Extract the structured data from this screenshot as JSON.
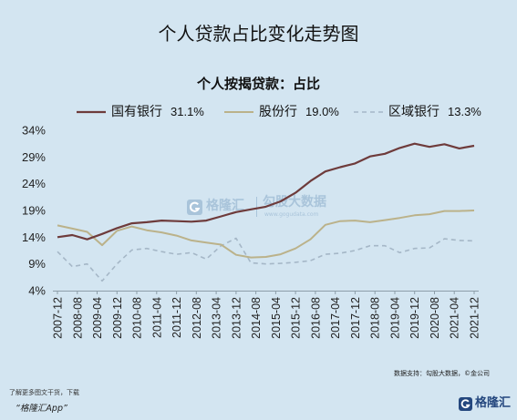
{
  "colors": {
    "background": "#d3e5f1",
    "axis": "#8d9ea9",
    "watermark": "#a9c4da",
    "brand": "#24477e"
  },
  "icons": {
    "watermark_logo": "gelonghui-logo-icon",
    "footer_logo": "gelonghui-logo-icon"
  },
  "watermark": {
    "brand": "格隆汇",
    "data_brand": "勾股大数据",
    "url": "www.gogudata.com"
  },
  "footer": {
    "promo_line": "了解更多图文干货，下载",
    "promo_app": "“格隆汇App”",
    "source": "数据支持：勾股大数据，©金公司",
    "brand": "格隆汇"
  },
  "chart_data": {
    "type": "line",
    "title": "个人贷款占比变化走势图",
    "subtitle": "个人按揭贷款：占比",
    "ylim": [
      4,
      34
    ],
    "y_ticks": [
      34,
      29,
      24,
      19,
      14,
      9,
      4
    ],
    "y_tick_labels": [
      "34%",
      "29%",
      "24%",
      "19%",
      "14%",
      "9%",
      "4%"
    ],
    "x_ticks": [
      "2007-12",
      "2008-08",
      "2009-04",
      "2009-12",
      "2010-08",
      "2011-04",
      "2011-12",
      "2012-08",
      "2013-04",
      "2013-12",
      "2014-08",
      "2015-04",
      "2015-12",
      "2016-08",
      "2017-04",
      "2017-12",
      "2018-08",
      "2019-04",
      "2019-12",
      "2020-08",
      "2021-04",
      "2021-12"
    ],
    "grid": false,
    "legend_position": "top",
    "x": [
      "2007-12",
      "2008-06",
      "2008-12",
      "2009-06",
      "2009-12",
      "2010-06",
      "2010-12",
      "2011-06",
      "2011-12",
      "2012-06",
      "2012-12",
      "2013-06",
      "2013-12",
      "2014-06",
      "2014-12",
      "2015-06",
      "2015-12",
      "2016-06",
      "2016-12",
      "2017-06",
      "2017-12",
      "2018-06",
      "2018-12",
      "2019-06",
      "2019-12",
      "2020-06",
      "2020-12",
      "2021-06",
      "2021-12"
    ],
    "series": [
      {
        "name": "国有银行",
        "legend_value": "31.1%",
        "color": "#6e3b3b",
        "dashed": false,
        "values": [
          14.0,
          14.4,
          13.6,
          14.6,
          15.7,
          16.6,
          16.8,
          17.1,
          17.0,
          16.9,
          17.1,
          17.9,
          18.7,
          19.2,
          19.7,
          20.7,
          22.3,
          24.5,
          26.3,
          27.1,
          27.8,
          29.1,
          29.6,
          30.7,
          31.5,
          30.9,
          31.4,
          30.6,
          31.1
        ]
      },
      {
        "name": "股份行",
        "legend_value": "19.0%",
        "color": "#bbb28a",
        "dashed": false,
        "values": [
          16.2,
          15.6,
          15.0,
          12.5,
          15.2,
          16.0,
          15.3,
          14.9,
          14.3,
          13.4,
          13.0,
          12.6,
          10.7,
          10.2,
          10.3,
          10.8,
          11.9,
          13.6,
          16.3,
          17.0,
          17.1,
          16.8,
          17.2,
          17.6,
          18.1,
          18.3,
          18.9,
          18.9,
          19.0
        ]
      },
      {
        "name": "区域银行",
        "legend_value": "13.3%",
        "color": "#a5b7c7",
        "dashed": true,
        "values": [
          11.3,
          8.5,
          9.0,
          5.8,
          9.0,
          11.6,
          11.9,
          11.3,
          10.8,
          11.1,
          9.9,
          12.4,
          13.8,
          9.2,
          9.0,
          9.1,
          9.3,
          9.6,
          10.8,
          11.0,
          11.5,
          12.4,
          12.4,
          11.1,
          11.9,
          12.0,
          13.7,
          13.4,
          13.3
        ]
      }
    ]
  }
}
